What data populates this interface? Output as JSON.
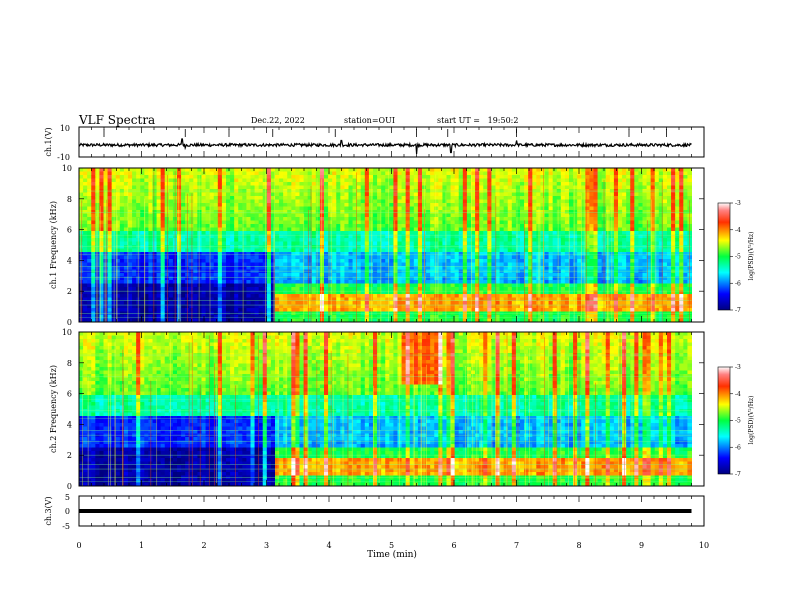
{
  "header": {
    "title": "VLF Spectra",
    "date": "Dec.22, 2022",
    "station": "station=OUI",
    "start_ut": "start UT =   19:50:2"
  },
  "chart_data": [
    {
      "type": "line",
      "panel": "ch1-waveform",
      "ylabel": "ch.1(V)",
      "ylim": [
        -10,
        10
      ],
      "yticks": [
        "10",
        "-10"
      ],
      "baseline": -2,
      "noise_amplitude": 0.6,
      "notable_spikes": [
        {
          "t": 1.65,
          "y": 2
        },
        {
          "t": 1.7,
          "y": -4
        },
        {
          "t": 5.4,
          "y": -8
        },
        {
          "t": 5.95,
          "y": -7
        },
        {
          "t": 4.2,
          "y": 1
        },
        {
          "t": 7.0,
          "y": 1
        }
      ]
    },
    {
      "type": "heatmap",
      "panel": "ch1-spectrogram",
      "ylabel": "ch.1 Frequency (kHz)",
      "ylim": [
        0,
        10
      ],
      "yticks": [
        "0",
        "2",
        "4",
        "6",
        "8",
        "10"
      ],
      "xlim": [
        0,
        10
      ],
      "regime_change_min": 3.1,
      "colorbar": {
        "label": "log(PSD)(V²/Hz)",
        "range": [
          -7,
          -3
        ],
        "ticks": [
          "-3",
          "-4",
          "-5",
          "-6",
          "-7"
        ]
      }
    },
    {
      "type": "heatmap",
      "panel": "ch2-spectrogram",
      "ylabel": "ch.2 Frequency (kHz)",
      "ylim": [
        0,
        10
      ],
      "yticks": [
        "0",
        "2",
        "4",
        "6",
        "8",
        "10"
      ],
      "xlim": [
        0,
        10
      ],
      "regime_change_min": 3.1,
      "colorbar": {
        "label": "log(PSD)(V²/Hz)",
        "range": [
          -7,
          -3
        ],
        "ticks": [
          "-3",
          "-4",
          "-5",
          "-6",
          "-7"
        ]
      }
    },
    {
      "type": "line",
      "panel": "ch3-waveform",
      "ylabel": "ch.3(V)",
      "ylim": [
        -5,
        5
      ],
      "yticks": [
        "5",
        "0",
        "-5"
      ],
      "baseline": -1.5
    }
  ],
  "xaxis": {
    "label": "Time (min)",
    "ticks": [
      "0",
      "1",
      "2",
      "3",
      "4",
      "5",
      "6",
      "7",
      "8",
      "9",
      "10"
    ],
    "range": [
      0,
      10
    ],
    "data_end_min": 9.8
  }
}
